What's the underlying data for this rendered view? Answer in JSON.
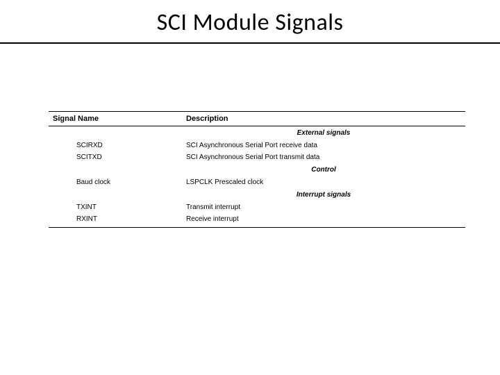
{
  "title": "SCI Module Signals",
  "table": {
    "columns": [
      "Signal Name",
      "Description"
    ],
    "column_widths_pct": [
      32,
      68
    ],
    "header_fontsize_pt": 11,
    "body_fontsize_pt": 10,
    "border_color": "#000000",
    "background_color": "#ffffff",
    "text_color": "#000000",
    "sections": [
      {
        "heading": "External signals",
        "rows": [
          {
            "signal": "SCIRXD",
            "description": "SCI Asynchronous Serial Port receive data"
          },
          {
            "signal": "SCITXD",
            "description": "SCI Asynchronous Serial Port transmit data"
          }
        ]
      },
      {
        "heading": "Control",
        "rows": [
          {
            "signal": "Baud clock",
            "description": "LSPCLK Prescaled clock"
          }
        ]
      },
      {
        "heading": "Interrupt signals",
        "rows": [
          {
            "signal": "TXINT",
            "description": "Transmit interrupt"
          },
          {
            "signal": "RXINT",
            "description": "Receive interrupt"
          }
        ]
      }
    ]
  },
  "title_fontsize_pt": 34,
  "title_underline_color": "#000000"
}
